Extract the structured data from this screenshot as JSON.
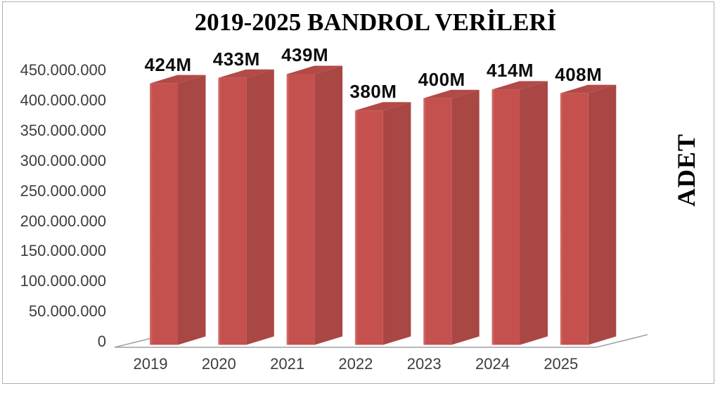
{
  "chart_data": {
    "type": "bar",
    "projection": "3d",
    "title": "2019-2025 BANDROL VERİLERİ",
    "ylabel": "ADET",
    "ylabel_side": "right",
    "xlabel": "",
    "categories": [
      "2019",
      "2020",
      "2021",
      "2022",
      "2023",
      "2024",
      "2025"
    ],
    "values": [
      424000000,
      433000000,
      439000000,
      380000000,
      400000000,
      414000000,
      408000000
    ],
    "data_labels": [
      "424M",
      "433M",
      "439M",
      "380M",
      "400M",
      "414M",
      "408M"
    ],
    "ylim": [
      0,
      450000000
    ],
    "ytick_step": 50000000,
    "ytick_labels": [
      "450.000.000",
      "400.000.000",
      "350.000.000",
      "300.000.000",
      "250.000.000",
      "200.000.000",
      "150.000.000",
      "100.000.000",
      "50.000.000",
      "0"
    ],
    "grid": false,
    "legend": "none",
    "colors": {
      "bar_front": "#c5514e",
      "bar_front_highlight": "#d4736f",
      "bar_side": "#a94744",
      "bar_top": "#b24a47",
      "floor_line": "#a0a0a0",
      "frame_border": "#b0b0b0",
      "axis_text": "#3d3d3d",
      "label_text": "#0d0d0d"
    }
  }
}
